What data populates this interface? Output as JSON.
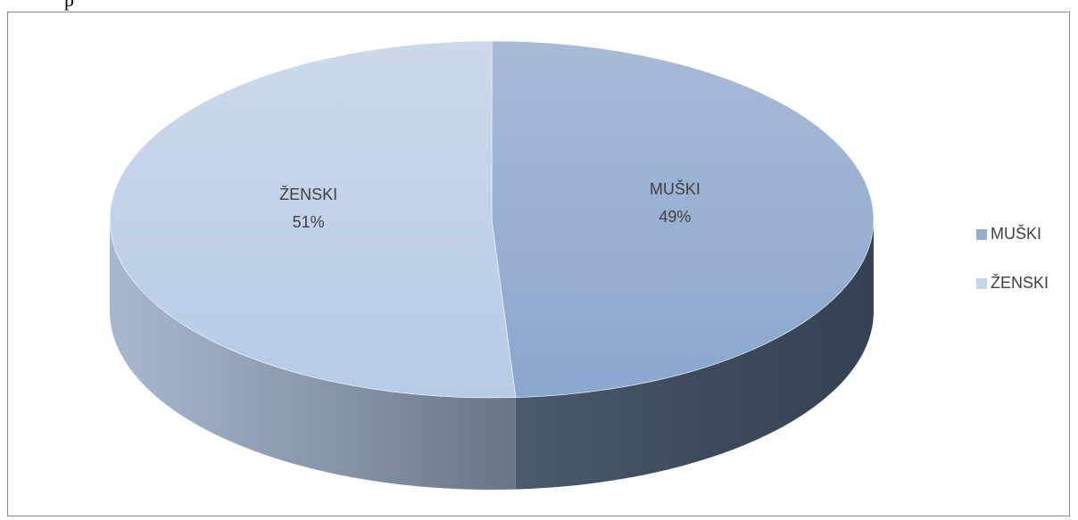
{
  "page": {
    "stray_text": "p"
  },
  "chart_data": {
    "type": "pie",
    "style": "3d",
    "categories": [
      "MUŠKI",
      "ŽENSKI"
    ],
    "values": [
      49,
      51
    ],
    "data_labels": [
      "49%",
      "51%"
    ],
    "colors": {
      "MUŠKI": "#95add1",
      "ŽENSKI": "#c4d4ea"
    },
    "legend": {
      "position": "right",
      "entries": [
        "MUŠKI",
        "ŽENSKI"
      ]
    }
  }
}
